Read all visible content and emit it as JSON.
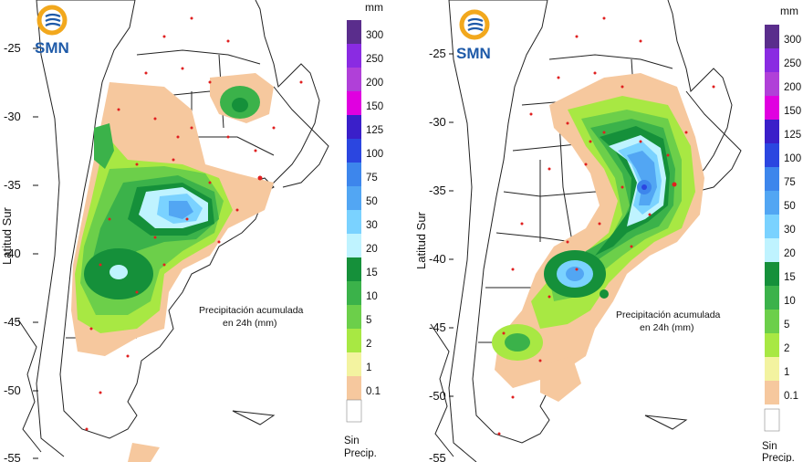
{
  "panels": [
    {
      "logo": "SMN",
      "y_axis_label": "Latitud Sur",
      "lat_ticks": [
        "-25",
        "-30",
        "-35",
        "-40",
        "-45",
        "-50",
        "-55"
      ],
      "annotation_line1": "Precipitación acumulada",
      "annotation_line2": "en 24h (mm)",
      "legend": {
        "unit": "mm",
        "classes": [
          {
            "label": "300",
            "color": "#5a2d8c"
          },
          {
            "label": "250",
            "color": "#8a2be2"
          },
          {
            "label": "200",
            "color": "#b040d8"
          },
          {
            "label": "150",
            "color": "#e000e0"
          },
          {
            "label": "125",
            "color": "#3a1fc9"
          },
          {
            "label": "100",
            "color": "#2b46e0"
          },
          {
            "label": "75",
            "color": "#3d86ec"
          },
          {
            "label": "50",
            "color": "#52a6f3"
          },
          {
            "label": "30",
            "color": "#7ad2ff"
          },
          {
            "label": "20",
            "color": "#bff3ff"
          },
          {
            "label": "15",
            "color": "#15903a"
          },
          {
            "label": "10",
            "color": "#3bb24a"
          },
          {
            "label": "5",
            "color": "#6ccf4a"
          },
          {
            "label": "2",
            "color": "#a8e843"
          },
          {
            "label": "1",
            "color": "#f3f3a0"
          },
          {
            "label": "0.1",
            "color": "#f6c89e"
          }
        ],
        "no_precip_line1": "Sin",
        "no_precip_line2": "Precip."
      }
    },
    {
      "logo": "SMN",
      "y_axis_label": "Latitud Sur",
      "lat_ticks": [
        "-25",
        "-30",
        "-35",
        "-40",
        "-45",
        "-50",
        "-55"
      ],
      "annotation_line1": "Precipitación acumulada",
      "annotation_line2": "en 24h (mm)",
      "legend": {
        "unit": "mm",
        "classes": [
          {
            "label": "300",
            "color": "#5a2d8c"
          },
          {
            "label": "250",
            "color": "#8a2be2"
          },
          {
            "label": "200",
            "color": "#b040d8"
          },
          {
            "label": "150",
            "color": "#e000e0"
          },
          {
            "label": "125",
            "color": "#3a1fc9"
          },
          {
            "label": "100",
            "color": "#2b46e0"
          },
          {
            "label": "75",
            "color": "#3d86ec"
          },
          {
            "label": "50",
            "color": "#52a6f3"
          },
          {
            "label": "30",
            "color": "#7ad2ff"
          },
          {
            "label": "20",
            "color": "#bff3ff"
          },
          {
            "label": "15",
            "color": "#15903a"
          },
          {
            "label": "10",
            "color": "#3bb24a"
          },
          {
            "label": "5",
            "color": "#6ccf4a"
          },
          {
            "label": "2",
            "color": "#a8e843"
          },
          {
            "label": "1",
            "color": "#f3f3a0"
          },
          {
            "label": "0.1",
            "color": "#f6c89e"
          }
        ],
        "no_precip_line1": "Sin",
        "no_precip_line2": "Precip."
      }
    }
  ]
}
